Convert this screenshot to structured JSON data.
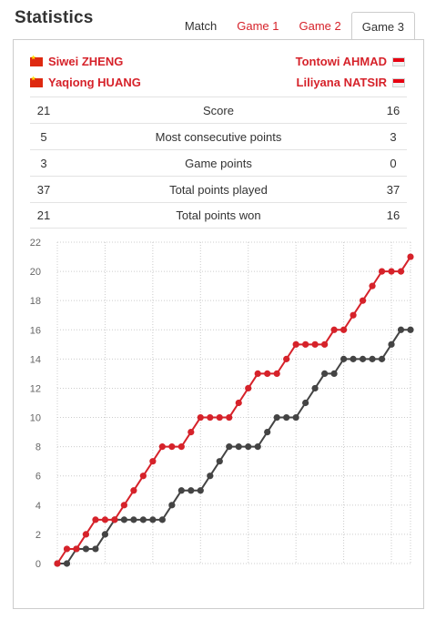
{
  "header": {
    "title": "Statistics",
    "tabs": [
      {
        "label": "Match"
      },
      {
        "label": "Game 1"
      },
      {
        "label": "Game 2"
      },
      {
        "label": "Game 3"
      }
    ],
    "active_tab": "Game 3"
  },
  "players": {
    "left": [
      {
        "name": "Siwei ZHENG",
        "flag": "china-flag-icon"
      },
      {
        "name": "Yaqiong HUANG",
        "flag": "china-flag-icon"
      }
    ],
    "right": [
      {
        "name": "Tontowi AHMAD",
        "flag": "indonesia-flag-icon"
      },
      {
        "name": "Liliyana NATSIR",
        "flag": "indonesia-flag-icon"
      }
    ]
  },
  "stats": [
    {
      "left": "21",
      "label": "Score",
      "right": "16"
    },
    {
      "left": "5",
      "label": "Most consecutive points",
      "right": "3"
    },
    {
      "left": "3",
      "label": "Game points",
      "right": "0"
    },
    {
      "left": "37",
      "label": "Total points played",
      "right": "37"
    },
    {
      "left": "21",
      "label": "Total points won",
      "right": "16"
    }
  ],
  "colors": {
    "accent": "#d6222a",
    "series_left": "#d6222a",
    "series_right": "#444444",
    "grid": "#cccccc"
  },
  "chart_data": {
    "type": "line",
    "title": "",
    "xlabel": "",
    "ylabel": "",
    "ylim": [
      0,
      22
    ],
    "yticks": [
      0,
      2,
      4,
      6,
      8,
      10,
      12,
      14,
      16,
      18,
      20,
      22
    ],
    "x": [
      0,
      1,
      2,
      3,
      4,
      5,
      6,
      7,
      8,
      9,
      10,
      11,
      12,
      13,
      14,
      15,
      16,
      17,
      18,
      19,
      20,
      21,
      22,
      23,
      24,
      25,
      26,
      27,
      28,
      29,
      30,
      31,
      32,
      33,
      34,
      35,
      36,
      37
    ],
    "grid": true,
    "series": [
      {
        "values": [
          0,
          1,
          1,
          2,
          3,
          3,
          3,
          4,
          5,
          6,
          7,
          8,
          8,
          8,
          9,
          10,
          10,
          10,
          10,
          11,
          12,
          13,
          13,
          13,
          14,
          15,
          15,
          15,
          15,
          16,
          16,
          17,
          18,
          19,
          20,
          20,
          20,
          21
        ]
      },
      {
        "values": [
          0,
          0,
          1,
          1,
          1,
          2,
          3,
          3,
          3,
          3,
          3,
          3,
          4,
          5,
          5,
          5,
          6,
          7,
          8,
          8,
          8,
          8,
          9,
          10,
          10,
          10,
          11,
          12,
          13,
          13,
          14,
          14,
          14,
          14,
          14,
          15,
          16,
          16
        ]
      }
    ]
  }
}
